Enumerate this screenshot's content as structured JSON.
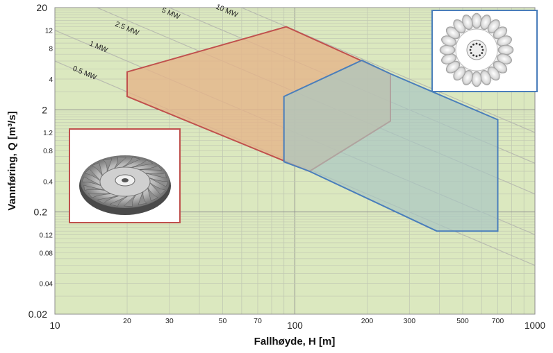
{
  "chart_data": {
    "type": "area",
    "xlabel": "Fallhøyde, H [m]",
    "ylabel": "Vannføring, Q [m³/s]",
    "xscale": "log",
    "yscale": "log",
    "xlim": [
      10,
      1000
    ],
    "ylim": [
      0.02,
      20
    ],
    "grid": true,
    "background_color": "#dbe8bf",
    "x_major_ticks": [
      10,
      100,
      1000
    ],
    "x_minor_ticks": [
      20,
      30,
      50,
      70,
      200,
      300,
      500,
      700
    ],
    "x_tick_labels": [
      "10",
      "20",
      "30",
      "50",
      "70",
      "100",
      "200",
      "300",
      "500",
      "700",
      "1000"
    ],
    "y_major_ticks": [
      0.02,
      0.2,
      2,
      20
    ],
    "y_minor_ticks": [
      0.04,
      0.08,
      0.12,
      0.4,
      0.8,
      1.2,
      4,
      8,
      12
    ],
    "y_tick_labels": [
      "0.02",
      "0.04",
      "0.08",
      "0.12",
      "0.2",
      "0.4",
      "0.8",
      "1.2",
      "2",
      "4",
      "8",
      "12",
      "20"
    ],
    "power_lines": [
      {
        "label": "0.5 MW",
        "power_mw": 0.5
      },
      {
        "label": "1 MW",
        "power_mw": 1
      },
      {
        "label": "2.5 MW",
        "power_mw": 2.5
      },
      {
        "label": "5 MW",
        "power_mw": 5
      },
      {
        "label": "10 MW",
        "power_mw": 10
      }
    ],
    "series": [
      {
        "color": "#c0504d",
        "fill": "#e5b48a",
        "points": [
          [
            20,
            4.7
          ],
          [
            92,
            13
          ],
          [
            250,
            4.5
          ],
          [
            250,
            1.55
          ],
          [
            115,
            0.5
          ],
          [
            20,
            2.7
          ]
        ]
      },
      {
        "color": "#4a7ebb",
        "fill": "#a9c6c2",
        "points": [
          [
            90,
            2.7
          ],
          [
            190,
            6.1
          ],
          [
            250,
            4.5
          ],
          [
            700,
            1.6
          ],
          [
            700,
            0.13
          ],
          [
            390,
            0.13
          ],
          [
            115,
            0.5
          ],
          [
            90,
            0.62
          ]
        ]
      }
    ],
    "images": [
      {
        "subject": "francis-runner",
        "border_color": "#c0504d"
      },
      {
        "subject": "pelton-runner",
        "border_color": "#4a7ebb"
      }
    ]
  }
}
